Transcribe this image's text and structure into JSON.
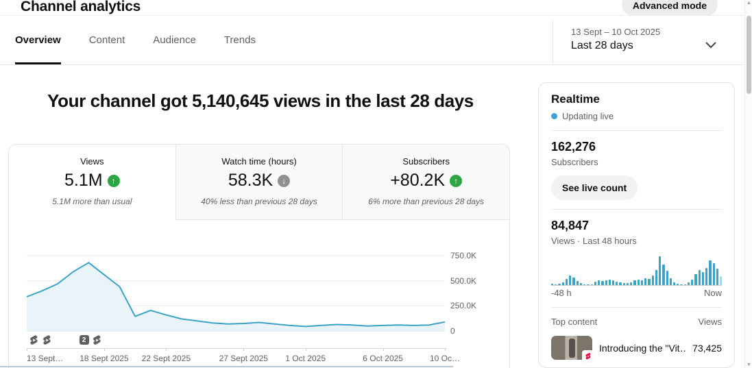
{
  "header": {
    "title": "Channel analytics",
    "advanced_mode_label": "Advanced mode"
  },
  "tabs": [
    {
      "label": "Overview",
      "active": true
    },
    {
      "label": "Content",
      "active": false
    },
    {
      "label": "Audience",
      "active": false
    },
    {
      "label": "Trends",
      "active": false
    }
  ],
  "date_filter": {
    "range": "13 Sept – 10 Oct 2025",
    "preset": "Last 28 days"
  },
  "headline": "Your channel got 5,140,645 views in the last 28 days",
  "kpis": [
    {
      "label": "Views",
      "value": "5.1M",
      "trend": "up",
      "trend_color": "green",
      "note": "5.1M more than usual",
      "selected": true
    },
    {
      "label": "Watch time (hours)",
      "value": "58.3K",
      "trend": "down",
      "trend_color": "grey",
      "note": "40% less than previous 28 days",
      "selected": false
    },
    {
      "label": "Subscribers",
      "value": "+80.2K",
      "trend": "up",
      "trend_color": "green",
      "note": "6% more than previous 28 days",
      "selected": false
    }
  ],
  "chart_data": {
    "daily_views": {
      "type": "area",
      "title": "Views per day, last 28 days (13 Sept – 10 Oct 2025)",
      "ylabel": "Views",
      "ylim": [
        0,
        750000
      ],
      "grid": true,
      "legend": "none",
      "yticks": [
        {
          "label": "750.0K",
          "value": 750000
        },
        {
          "label": "500.0K",
          "value": 500000
        },
        {
          "label": "250.0K",
          "value": 250000
        },
        {
          "label": "0",
          "value": 0
        }
      ],
      "xticks": [
        {
          "label": "13 Sept…",
          "day": 0,
          "anchor": "start"
        },
        {
          "label": "18 Sept 2025",
          "day": 5
        },
        {
          "label": "22 Sept 2025",
          "day": 9
        },
        {
          "label": "27 Sept 2025",
          "day": 14
        },
        {
          "label": "1 Oct 2025",
          "day": 18
        },
        {
          "label": "6 Oct 2025",
          "day": 23
        },
        {
          "label": "10 Oc…",
          "day": 27
        }
      ],
      "values": [
        340000,
        400000,
        470000,
        590000,
        680000,
        560000,
        440000,
        145000,
        205000,
        160000,
        120000,
        100000,
        80000,
        70000,
        75000,
        85000,
        70000,
        55000,
        45000,
        55000,
        65000,
        60000,
        50000,
        55000,
        60000,
        55000,
        60000,
        90000
      ],
      "line_color": "#3ba3c7",
      "fill_color": "#e9f4f9",
      "markers": [
        {
          "kind": "shorts",
          "day": 0.45
        },
        {
          "kind": "shorts",
          "day": 1.3
        },
        {
          "kind": "badge",
          "label": "2",
          "day": 3.7
        },
        {
          "kind": "shorts",
          "day": 4.5
        }
      ]
    },
    "realtime_48h": {
      "type": "bar",
      "title": "Views · Last 48 hours",
      "x_start_label": "-48 h",
      "x_end_label": "Now",
      "bar_color": "#3ba3c7",
      "current_bar_color": "#a9d7e8",
      "relative_heights": [
        4,
        2,
        5,
        9,
        22,
        34,
        26,
        14,
        7,
        3,
        2,
        2,
        12,
        16,
        14,
        16,
        18,
        16,
        13,
        9,
        6,
        6,
        10,
        16,
        19,
        17,
        24,
        21,
        34,
        52,
        100,
        72,
        50,
        24,
        9,
        4,
        2,
        2,
        9,
        20,
        38,
        52,
        46,
        60,
        86,
        76,
        58,
        30
      ]
    }
  },
  "realtime": {
    "title": "Realtime",
    "updating_label": "Updating live",
    "subscribers_count": "162,276",
    "subscribers_label": "Subscribers",
    "live_count_button": "See live count",
    "views_count": "84,847",
    "views_label": "Views · Last 48 hours",
    "bars_start": "-48 h",
    "bars_end": "Now",
    "top_content": {
      "header": "Top content",
      "views_header": "Views",
      "rows": [
        {
          "title": "Introducing the \"Vit…",
          "views": "73,425"
        }
      ]
    }
  },
  "colors": {
    "accent_blue": "#3ba3c7",
    "live_dot_blue": "#3ea2d4",
    "positive_green": "#2ba640",
    "neutral_grey": "#919191",
    "text_primary": "#0f0f0f",
    "text_secondary": "#606060"
  }
}
